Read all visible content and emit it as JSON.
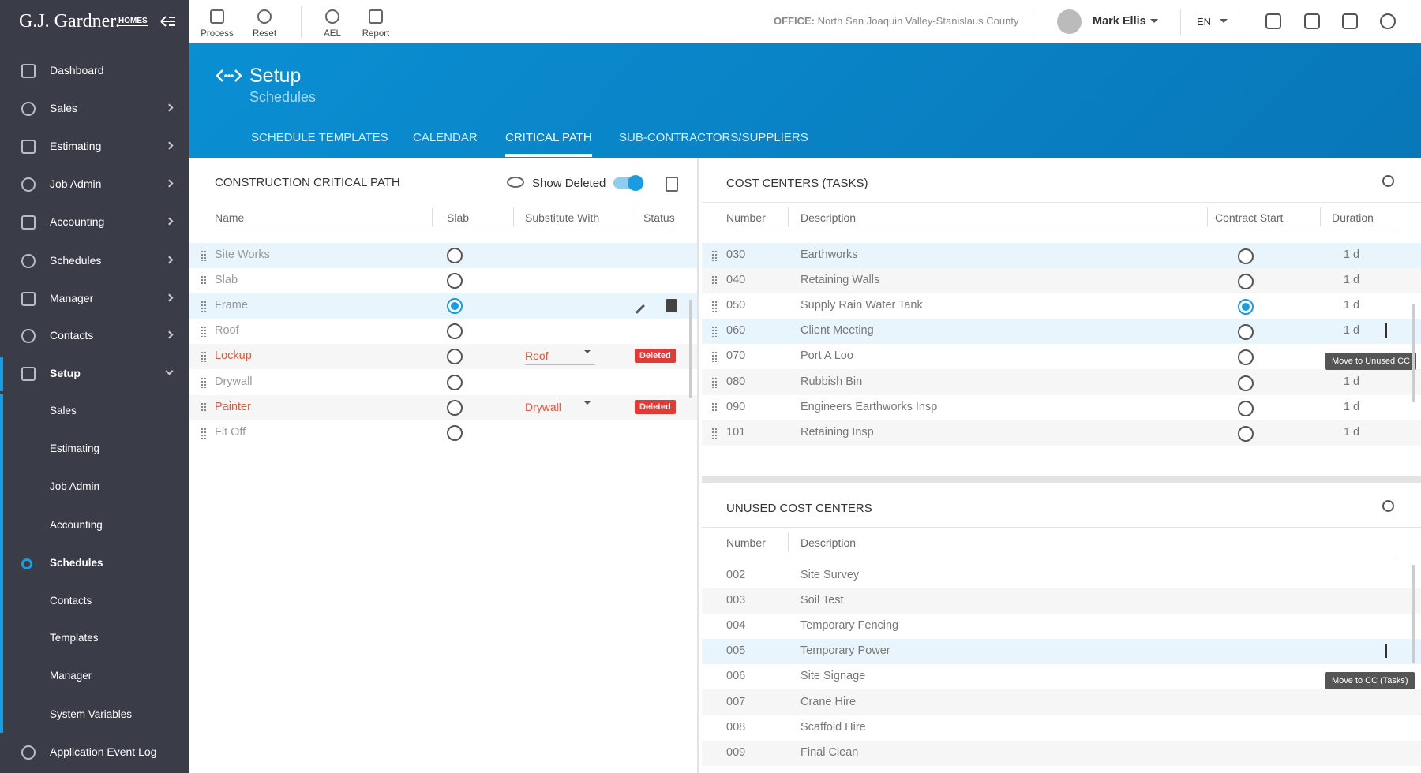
{
  "brand": {
    "name": "G.J. Gardner.",
    "tag": "HOMES"
  },
  "toolbar": [
    "Process",
    "Reset",
    "AEL",
    "Report"
  ],
  "office": {
    "label": "OFFICE:",
    "value": "North San Joaquin Valley-Stanislaus County"
  },
  "user": "Mark Ellis",
  "language": "EN",
  "sidebar": [
    {
      "label": "Dashboard"
    },
    {
      "label": "Sales",
      "expandable": true
    },
    {
      "label": "Estimating",
      "expandable": true
    },
    {
      "label": "Job Admin",
      "expandable": true
    },
    {
      "label": "Accounting",
      "expandable": true
    },
    {
      "label": "Schedules",
      "expandable": true
    },
    {
      "label": "Manager",
      "expandable": true
    },
    {
      "label": "Contacts",
      "expandable": true
    },
    {
      "label": "Setup",
      "expandable": true,
      "open": true,
      "children": [
        "Sales",
        "Estimating",
        "Job Admin",
        "Accounting",
        "Schedules",
        "Contacts",
        "Templates",
        "Manager",
        "System Variables"
      ],
      "active_child": 4
    },
    {
      "label": "Application Event Log"
    }
  ],
  "page": {
    "title": "Setup",
    "subtitle": "Schedules",
    "tabs": [
      "SCHEDULE TEMPLATES",
      "CALENDAR",
      "CRITICAL PATH",
      "SUB-CONTRACTORS/SUPPLIERS"
    ],
    "active_tab": 2
  },
  "critical_path": {
    "title": "CONSTRUCTION CRITICAL PATH",
    "show_deleted": "Show Deleted",
    "columns": [
      "Name",
      "Slab",
      "Substitute With",
      "Status"
    ],
    "rows": [
      {
        "name": "Site Works",
        "slab": false,
        "highlight": true
      },
      {
        "name": "Slab",
        "slab": false
      },
      {
        "name": "Frame",
        "slab": true,
        "highlight": true,
        "actions": true
      },
      {
        "name": "Roof",
        "slab": false
      },
      {
        "name": "Lockup",
        "slab": false,
        "substitute": "Roof",
        "status": "Deleted"
      },
      {
        "name": "Drywall",
        "slab": false
      },
      {
        "name": "Painter",
        "slab": false,
        "substitute": "Drywall",
        "status": "Deleted"
      },
      {
        "name": "Fit Off",
        "slab": false
      }
    ]
  },
  "cost_centers": {
    "title": "COST CENTERS (TASKS)",
    "columns": [
      "Number",
      "Description",
      "Contract Start",
      "Duration"
    ],
    "rows": [
      {
        "number": "030",
        "description": "Earthworks",
        "contract_start": false,
        "duration": "1 d",
        "highlight": true
      },
      {
        "number": "040",
        "description": "Retaining Walls",
        "contract_start": false,
        "duration": "1 d"
      },
      {
        "number": "050",
        "description": "Supply Rain Water Tank",
        "contract_start": true,
        "duration": "1 d"
      },
      {
        "number": "060",
        "description": "Client Meeting",
        "contract_start": false,
        "duration": "1 d",
        "highlight": true
      },
      {
        "number": "070",
        "description": "Port A Loo",
        "contract_start": false
      },
      {
        "number": "080",
        "description": "Rubbish Bin",
        "contract_start": false,
        "duration": "1 d"
      },
      {
        "number": "090",
        "description": "Engineers Earthworks Insp",
        "contract_start": false,
        "duration": "1 d"
      },
      {
        "number": "101",
        "description": "Retaining Insp",
        "contract_start": false,
        "duration": "1 d"
      }
    ],
    "tooltip": "Move to Unused CC"
  },
  "unused_cost_centers": {
    "title": "UNUSED COST CENTERS",
    "columns": [
      "Number",
      "Description"
    ],
    "rows": [
      {
        "number": "002",
        "description": "Site Survey"
      },
      {
        "number": "003",
        "description": "Soil Test"
      },
      {
        "number": "004",
        "description": "Temporary Fencing"
      },
      {
        "number": "005",
        "description": "Temporary Power",
        "highlight": true
      },
      {
        "number": "006",
        "description": "Site Signage"
      },
      {
        "number": "007",
        "description": "Crane Hire"
      },
      {
        "number": "008",
        "description": "Scaffold Hire"
      },
      {
        "number": "009",
        "description": "Final Clean"
      }
    ],
    "tooltip": "Move to CC (Tasks)"
  }
}
